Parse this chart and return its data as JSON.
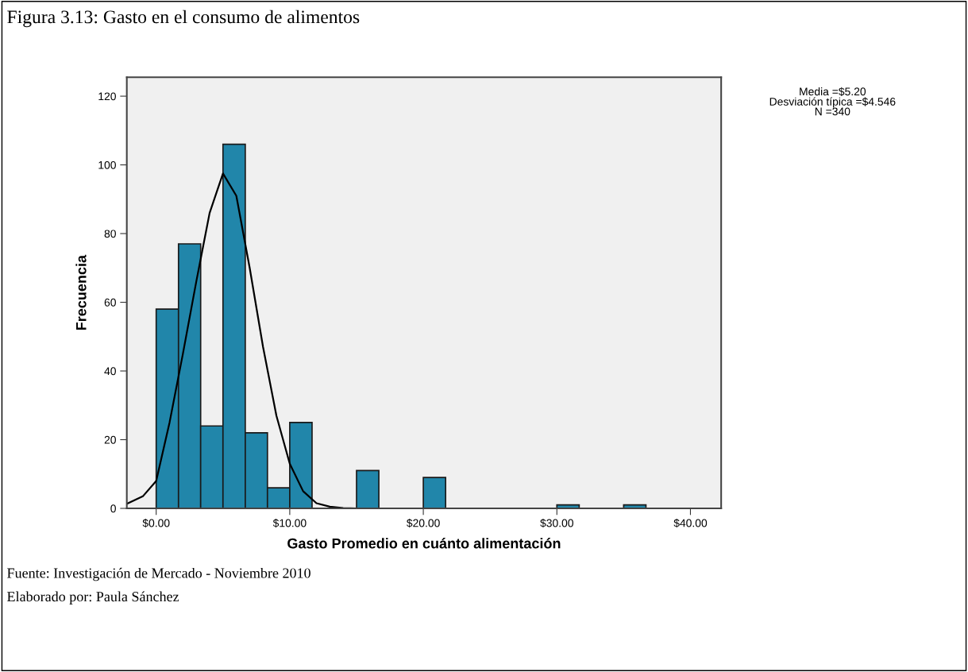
{
  "chart_data": {
    "type": "histogram",
    "title": "Figura 3.13: Gasto en el consumo de alimentos",
    "xlabel": "Gasto Promedio en cuánto alimentación",
    "ylabel": "Frecuencia",
    "bins": [
      0,
      1.67,
      3.33,
      5,
      6.67,
      8.33,
      10,
      11.67,
      13.33,
      15,
      16.67,
      18.33,
      20,
      21.67,
      23.33,
      25,
      26.67,
      28.33,
      30,
      31.67,
      33.33,
      35,
      36.67
    ],
    "values": [
      58,
      77,
      24,
      106,
      22,
      6,
      25,
      0,
      0,
      11,
      0,
      0,
      9,
      0,
      0,
      0,
      0,
      0,
      1,
      0,
      0,
      1
    ],
    "color": "#2186aa",
    "series": [
      {
        "type": "line",
        "color": "#000000",
        "x": [
          -2.2,
          -1,
          0,
          1,
          2,
          3,
          4,
          5,
          6,
          7,
          8,
          9,
          10,
          11,
          12,
          13,
          14,
          15
        ],
        "values": [
          1.3,
          3.5,
          8,
          25,
          45,
          66,
          86,
          97.5,
          91,
          70,
          47,
          27,
          13,
          5,
          1.5,
          0.5,
          0.1,
          0
        ]
      }
    ],
    "xlim": [
      -2.2,
      42.3
    ],
    "xticks": [
      {
        "value": 0,
        "label": "$0.00"
      },
      {
        "value": 10,
        "label": "$10.00"
      },
      {
        "value": 20,
        "label": "$20.00"
      },
      {
        "value": 30,
        "label": "$30.00"
      },
      {
        "value": 40,
        "label": "$40.00"
      }
    ],
    "ylim": [
      0,
      125.5
    ],
    "yticks": [
      0,
      20,
      40,
      60,
      80,
      100,
      120
    ],
    "grid": false,
    "annotations": [
      "Media =$5.20\nDesviación típica =$4.546\nN =340",
      "Fuente: Investigación de Mercado - Noviembre 2010",
      "Elaborado por: Paula Sánchez"
    ]
  }
}
